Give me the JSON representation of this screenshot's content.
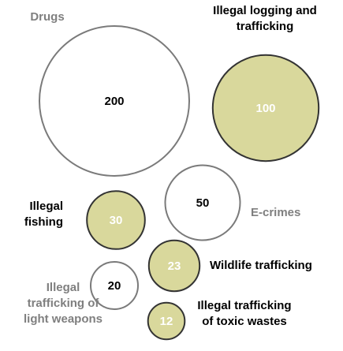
{
  "chart_data": {
    "type": "bubble",
    "title": "",
    "bubbles": [
      {
        "name": "Drugs",
        "label_lines": [
          "Drugs"
        ],
        "value": 200,
        "value_text": "200",
        "highlighted": false
      },
      {
        "name": "Illegal logging and trafficking",
        "label_lines": [
          "Illegal logging and",
          "trafficking"
        ],
        "value": 100,
        "value_text": "100",
        "highlighted": true
      },
      {
        "name": "E-crimes",
        "label_lines": [
          "E-crimes"
        ],
        "value": 50,
        "value_text": "50",
        "highlighted": false
      },
      {
        "name": "Illegal fishing",
        "label_lines": [
          "Illegal",
          "fishing"
        ],
        "value": 30,
        "value_text": "30",
        "highlighted": true
      },
      {
        "name": "Wildlife trafficking",
        "label_lines": [
          "Wildlife trafficking"
        ],
        "value": 23,
        "value_text": "23",
        "highlighted": true
      },
      {
        "name": "Illegal trafficking of light weapons",
        "label_lines": [
          "Illegal",
          "trafficking of",
          "light weapons"
        ],
        "value": 20,
        "value_text": "20",
        "highlighted": false
      },
      {
        "name": "Illegal trafficking of toxic wastes",
        "label_lines": [
          "Illegal trafficking",
          "of toxic wastes"
        ],
        "value": 12,
        "value_text": "12",
        "highlighted": true
      }
    ]
  },
  "colors": {
    "highlight_fill": "#d9d89c",
    "highlight_stroke": "#333333",
    "highlight_value_text": "#ffffff",
    "plain_fill": "#ffffff",
    "plain_stroke": "#7a7a7a",
    "plain_value_text": "#000000",
    "highlight_label_text": "#000000",
    "plain_label_text": "#7f7f7f"
  }
}
